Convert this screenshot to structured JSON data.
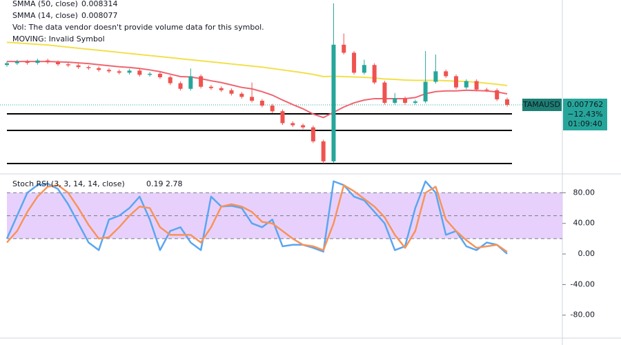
{
  "chart_data": [
    {
      "type": "candlestick",
      "up_color": "#26a69a",
      "down_color": "#ef5350",
      "ylim": [
        0.005831,
        0.010756
      ],
      "open": [
        0.0089,
        0.00895,
        0.009,
        0.00896,
        0.00903,
        0.00898,
        0.00892,
        0.00889,
        0.00884,
        0.00881,
        0.00876,
        0.00872,
        0.00868,
        0.00874,
        0.00862,
        0.00865,
        0.00855,
        0.00838,
        0.00822,
        0.00858,
        0.00828,
        0.00824,
        0.00818,
        0.00808,
        0.00799,
        0.00788,
        0.00774,
        0.00758,
        0.00724,
        0.00718,
        0.00712,
        0.00672,
        0.00615,
        0.00948,
        0.00925,
        0.00868,
        0.0089,
        0.0084,
        0.00782,
        0.00795,
        0.00782,
        0.00786,
        0.00842,
        0.00872,
        0.00858,
        0.00826,
        0.00844,
        0.0082,
        0.00818,
        0.00792
      ],
      "high": [
        0.009,
        0.00905,
        0.00905,
        0.00908,
        0.00908,
        0.00903,
        0.00897,
        0.00894,
        0.00889,
        0.00886,
        0.00881,
        0.00877,
        0.00879,
        0.00879,
        0.0087,
        0.0087,
        0.0086,
        0.00843,
        0.0088,
        0.00863,
        0.00833,
        0.00829,
        0.00823,
        0.00813,
        0.0084,
        0.00793,
        0.00779,
        0.00763,
        0.00729,
        0.00723,
        0.00717,
        0.00677,
        0.01066,
        0.0098,
        0.0093,
        0.00905,
        0.00895,
        0.00845,
        0.0081,
        0.008,
        0.00791,
        0.0093,
        0.0092,
        0.00877,
        0.00863,
        0.00849,
        0.00849,
        0.00825,
        0.00823,
        0.00797
      ],
      "low": [
        0.00885,
        0.0089,
        0.00891,
        0.00891,
        0.00893,
        0.00887,
        0.00884,
        0.00879,
        0.00876,
        0.00871,
        0.00867,
        0.00863,
        0.00863,
        0.00857,
        0.00857,
        0.0085,
        0.00833,
        0.00817,
        0.00817,
        0.00823,
        0.00819,
        0.00813,
        0.00803,
        0.00794,
        0.00783,
        0.00769,
        0.00753,
        0.00719,
        0.00713,
        0.00707,
        0.00667,
        0.00609,
        0.0061,
        0.0092,
        0.00863,
        0.00863,
        0.00835,
        0.00777,
        0.00777,
        0.00777,
        0.00777,
        0.00781,
        0.00837,
        0.00853,
        0.00821,
        0.00821,
        0.00815,
        0.00813,
        0.00787,
        0.00771
      ],
      "close": [
        0.00895,
        0.009,
        0.00896,
        0.00903,
        0.00898,
        0.00892,
        0.00889,
        0.00884,
        0.00881,
        0.00876,
        0.00872,
        0.00868,
        0.00874,
        0.00862,
        0.00865,
        0.00855,
        0.00838,
        0.00822,
        0.00858,
        0.00828,
        0.00824,
        0.00818,
        0.00808,
        0.00799,
        0.00788,
        0.00774,
        0.00758,
        0.00724,
        0.00718,
        0.00712,
        0.00672,
        0.00615,
        0.00948,
        0.00925,
        0.00868,
        0.0089,
        0.0084,
        0.00782,
        0.00795,
        0.00782,
        0.00786,
        0.00842,
        0.00872,
        0.00858,
        0.00826,
        0.00844,
        0.0082,
        0.00818,
        0.00792,
        0.007762
      ],
      "series": [
        {
          "name": "SMMA (50, close)",
          "color": "#f2e04a",
          "values": [
            0.00955,
            0.00953,
            0.00951,
            0.00949,
            0.00947,
            0.00944,
            0.00941,
            0.00938,
            0.00935,
            0.00932,
            0.00929,
            0.00926,
            0.00923,
            0.0092,
            0.00917,
            0.00914,
            0.00911,
            0.00908,
            0.00905,
            0.00902,
            0.00899,
            0.00896,
            0.00893,
            0.0089,
            0.00887,
            0.00884,
            0.0088,
            0.00876,
            0.00872,
            0.00868,
            0.00863,
            0.00857,
            0.00858,
            0.00857,
            0.00856,
            0.00855,
            0.00853,
            0.0085,
            0.00849,
            0.00847,
            0.00846,
            0.00846,
            0.00846,
            0.00845,
            0.00844,
            0.00843,
            0.00841,
            0.00838,
            0.00835,
            0.008314
          ]
        },
        {
          "name": "SMMA (14, close)",
          "color": "#f06470",
          "values": [
            0.009,
            0.009,
            0.009,
            0.009,
            0.009,
            0.00899,
            0.00898,
            0.00896,
            0.00894,
            0.00891,
            0.00888,
            0.00885,
            0.00883,
            0.0088,
            0.00876,
            0.00871,
            0.00864,
            0.00857,
            0.00856,
            0.00851,
            0.00845,
            0.0084,
            0.00833,
            0.00826,
            0.00822,
            0.00814,
            0.00804,
            0.0079,
            0.00777,
            0.00765,
            0.0075,
            0.0074,
            0.00755,
            0.0077,
            0.00782,
            0.0079,
            0.00794,
            0.00794,
            0.00794,
            0.00794,
            0.00797,
            0.00808,
            0.00814,
            0.00816,
            0.00816,
            0.00818,
            0.00817,
            0.00816,
            0.00813,
            0.008077
          ]
        }
      ],
      "levels": [
        0.007506,
        0.007033,
        0.006087
      ],
      "annotations": [
        "Vol: The data vendor doesn't provide volume data for this symbol.",
        "MOVING: Invalid Symbol"
      ],
      "symbol": "TAMAUSD",
      "last": 0.007762,
      "change": "−12.43%",
      "countdown": "01:09:40"
    },
    {
      "type": "line",
      "title": "Stoch RSI (3, 3, 14, 14, close)",
      "ylim": [
        -110,
        102
      ],
      "yticks": [
        {
          "value": 80,
          "label": "80.00"
        },
        {
          "value": 40,
          "label": "40.00"
        },
        {
          "value": 0,
          "label": "0.00"
        },
        {
          "value": -40,
          "label": "-40.00"
        },
        {
          "value": -80,
          "label": "-80.00"
        }
      ],
      "band": [
        20,
        80
      ],
      "band_color": "#e1c6fb",
      "levels": [
        80,
        50,
        20
      ],
      "series": [
        {
          "color": "#5aa6f0",
          "values": [
            20,
            50,
            80,
            90,
            92,
            85,
            65,
            40,
            15,
            5,
            45,
            50,
            60,
            75,
            45,
            5,
            30,
            35,
            15,
            5,
            75,
            62,
            63,
            60,
            40,
            35,
            45,
            10,
            12,
            12,
            8,
            3,
            95,
            90,
            75,
            70,
            55,
            40,
            5,
            10,
            60,
            95,
            80,
            25,
            30,
            10,
            5,
            15,
            12,
            0.19
          ]
        },
        {
          "color": "#f7935a",
          "values": [
            15,
            30,
            55,
            75,
            88,
            90,
            80,
            60,
            38,
            20,
            22,
            35,
            50,
            62,
            60,
            35,
            25,
            25,
            25,
            15,
            35,
            62,
            65,
            62,
            55,
            42,
            40,
            30,
            20,
            12,
            10,
            5,
            40,
            90,
            82,
            72,
            62,
            48,
            25,
            8,
            30,
            80,
            88,
            45,
            30,
            18,
            8,
            10,
            12,
            2.78
          ]
        }
      ]
    }
  ]
}
